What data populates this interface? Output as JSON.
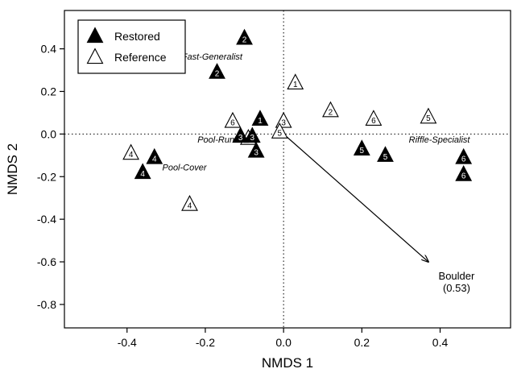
{
  "chart_data": {
    "type": "scatter",
    "xlabel": "NMDS 1",
    "ylabel": "NMDS 2",
    "xlim": [
      -0.56,
      0.58
    ],
    "ylim": [
      -0.91,
      0.58
    ],
    "x_ticks": [
      "-0.4",
      "-0.2",
      "0.0",
      "0.2",
      "0.4"
    ],
    "x_tick_values": [
      -0.4,
      -0.2,
      0.0,
      0.2,
      0.4
    ],
    "y_ticks": [
      "0.4",
      "0.2",
      "0.0",
      "-0.2",
      "-0.4",
      "-0.6",
      "-0.8"
    ],
    "y_tick_values": [
      0.4,
      0.2,
      0.0,
      -0.2,
      -0.4,
      -0.6,
      -0.8
    ],
    "grid": false,
    "reference_lines": {
      "x": 0,
      "y": 0,
      "style": "dotted"
    },
    "legend": {
      "placement": "top-left",
      "entries": [
        {
          "label": "Restored",
          "marker": "filled-triangle"
        },
        {
          "label": "Reference",
          "marker": "open-triangle"
        }
      ]
    },
    "series": [
      {
        "name": "Restored",
        "points": [
          {
            "x": -0.1,
            "y": 0.45,
            "label": "2"
          },
          {
            "x": -0.17,
            "y": 0.29,
            "label": "2"
          },
          {
            "x": -0.06,
            "y": 0.07,
            "label": "1"
          },
          {
            "x": -0.11,
            "y": -0.01,
            "label": "3"
          },
          {
            "x": -0.08,
            "y": -0.01,
            "label": "3"
          },
          {
            "x": -0.07,
            "y": -0.08,
            "label": "3"
          },
          {
            "x": 0.2,
            "y": -0.07,
            "label": "5"
          },
          {
            "x": 0.26,
            "y": -0.1,
            "label": "5"
          },
          {
            "x": -0.33,
            "y": -0.11,
            "label": "4"
          },
          {
            "x": -0.36,
            "y": -0.18,
            "label": "4"
          },
          {
            "x": 0.46,
            "y": -0.11,
            "label": "6"
          },
          {
            "x": 0.46,
            "y": -0.19,
            "label": "6"
          }
        ]
      },
      {
        "name": "Reference",
        "points": [
          {
            "x": 0.03,
            "y": 0.24,
            "label": "1"
          },
          {
            "x": 0.12,
            "y": 0.11,
            "label": "2"
          },
          {
            "x": 0.23,
            "y": 0.07,
            "label": "6"
          },
          {
            "x": 0.37,
            "y": 0.08,
            "label": "5"
          },
          {
            "x": -0.13,
            "y": 0.06,
            "label": "6"
          },
          {
            "x": 0.0,
            "y": 0.06,
            "label": "3"
          },
          {
            "x": -0.09,
            "y": -0.02,
            "label": "3"
          },
          {
            "x": -0.01,
            "y": 0.01,
            "label": "5"
          },
          {
            "x": -0.39,
            "y": -0.09,
            "label": "4"
          },
          {
            "x": -0.24,
            "y": -0.33,
            "label": "4"
          }
        ]
      }
    ],
    "group_labels": [
      {
        "text": "Fast-Generalist",
        "x": -0.26,
        "y": 0.35
      },
      {
        "text": "Pool-Run",
        "x": -0.22,
        "y": -0.04
      },
      {
        "text": "Pool-Cover",
        "x": -0.31,
        "y": -0.17
      },
      {
        "text": "Riffle-Specialist",
        "x": 0.32,
        "y": -0.04
      }
    ],
    "vectors": [
      {
        "name": "Boulder",
        "value": "(0.53)",
        "x0": 0.0,
        "y0": 0.0,
        "x1": 0.37,
        "y1": -0.6
      }
    ]
  }
}
